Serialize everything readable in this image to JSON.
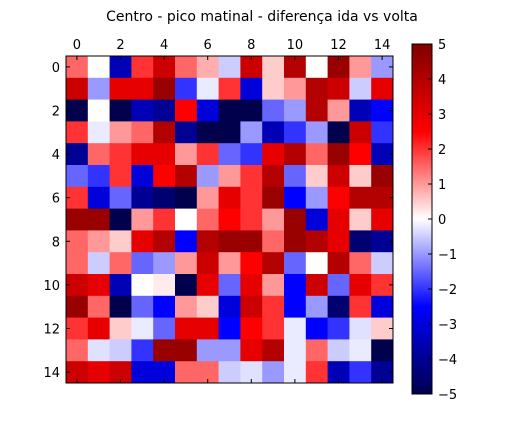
{
  "chart_data": {
    "type": "heatmap",
    "title": "Centro - pico matinal - diferença ida vs volta",
    "xlabel": "",
    "ylabel": "",
    "x_ticks": [
      "0",
      "2",
      "4",
      "6",
      "8",
      "10",
      "12",
      "14"
    ],
    "y_ticks": [
      "0",
      "2",
      "4",
      "6",
      "8",
      "10",
      "12",
      "14"
    ],
    "x_axis_position": "top",
    "colormap": "seismic",
    "vmin": -5,
    "vmax": 5,
    "colorbar_ticks": [
      "5",
      "4",
      "3",
      "2",
      "1",
      "0",
      "−1",
      "−2",
      "−3",
      "−4",
      "−5"
    ],
    "colorbar_values": [
      5,
      4,
      3,
      2,
      1,
      0,
      -1,
      -2,
      -3,
      -4,
      -5
    ],
    "rows": 15,
    "cols": 15,
    "values": [
      [
        1.5,
        0.0,
        -3.5,
        2.0,
        3.5,
        1.5,
        0.8,
        -0.5,
        3.5,
        0.5,
        4.0,
        0.0,
        4.5,
        1.0,
        -1.0
      ],
      [
        3.5,
        -1.0,
        3.0,
        3.0,
        4.5,
        -2.0,
        -0.2,
        2.0,
        -3.0,
        0.5,
        1.0,
        4.0,
        3.5,
        -0.5,
        3.0
      ],
      [
        -5.0,
        0.0,
        -5.0,
        -3.5,
        -4.0,
        2.5,
        -3.0,
        -5.0,
        -5.0,
        -1.5,
        -1.0,
        4.0,
        1.0,
        -3.5,
        -2.5
      ],
      [
        2.0,
        -0.2,
        1.0,
        1.5,
        4.0,
        -4.0,
        -5.0,
        -5.0,
        -1.0,
        -3.5,
        -2.0,
        -1.0,
        -5.0,
        3.5,
        -2.0
      ],
      [
        -4.0,
        1.5,
        2.0,
        3.0,
        3.0,
        1.0,
        2.0,
        -1.5,
        -2.0,
        3.0,
        4.0,
        1.5,
        4.5,
        2.5,
        -3.5
      ],
      [
        -1.5,
        -2.0,
        2.0,
        -3.0,
        2.5,
        4.0,
        -1.0,
        1.0,
        2.0,
        4.0,
        -1.5,
        0.5,
        3.5,
        0.5,
        4.5
      ],
      [
        2.0,
        -3.0,
        -1.5,
        -4.0,
        -4.5,
        -5.0,
        1.0,
        3.0,
        2.0,
        4.5,
        -2.5,
        -1.0,
        2.5,
        4.0,
        4.0
      ],
      [
        4.5,
        4.5,
        -5.0,
        1.0,
        2.0,
        0.0,
        1.5,
        2.5,
        2.0,
        1.0,
        4.5,
        -3.0,
        3.0,
        0.5,
        3.0
      ],
      [
        1.5,
        1.0,
        0.5,
        3.0,
        4.0,
        -2.5,
        4.0,
        4.5,
        4.5,
        1.5,
        4.5,
        4.0,
        3.0,
        -4.5,
        -4.0
      ],
      [
        1.5,
        -0.5,
        1.5,
        -1.5,
        -1.0,
        1.0,
        3.5,
        1.0,
        2.5,
        4.0,
        -1.5,
        0.0,
        4.0,
        1.5,
        -0.5
      ],
      [
        3.5,
        3.0,
        -3.5,
        0.0,
        0.2,
        -5.0,
        3.0,
        -1.5,
        3.0,
        1.0,
        -2.5,
        3.5,
        -1.5,
        3.0,
        2.0
      ],
      [
        4.5,
        1.5,
        -5.0,
        -1.5,
        -2.5,
        1.0,
        0.5,
        -3.0,
        3.5,
        2.0,
        -2.5,
        -1.0,
        -4.5,
        2.0,
        -3.0
      ],
      [
        2.0,
        3.0,
        0.5,
        -0.2,
        -1.5,
        3.0,
        3.0,
        -2.5,
        2.5,
        2.0,
        -0.2,
        -2.5,
        -2.0,
        -0.3,
        0.5
      ],
      [
        1.5,
        -0.3,
        -0.5,
        -2.0,
        4.5,
        4.5,
        -1.0,
        -1.0,
        3.0,
        4.0,
        -0.2,
        1.5,
        -0.5,
        -0.2,
        -5.0
      ],
      [
        3.5,
        3.0,
        3.5,
        -3.0,
        -3.0,
        1.5,
        1.5,
        -0.5,
        -0.3,
        -1.0,
        -0.2,
        2.0,
        -3.5,
        -2.0,
        -4.0
      ]
    ]
  }
}
